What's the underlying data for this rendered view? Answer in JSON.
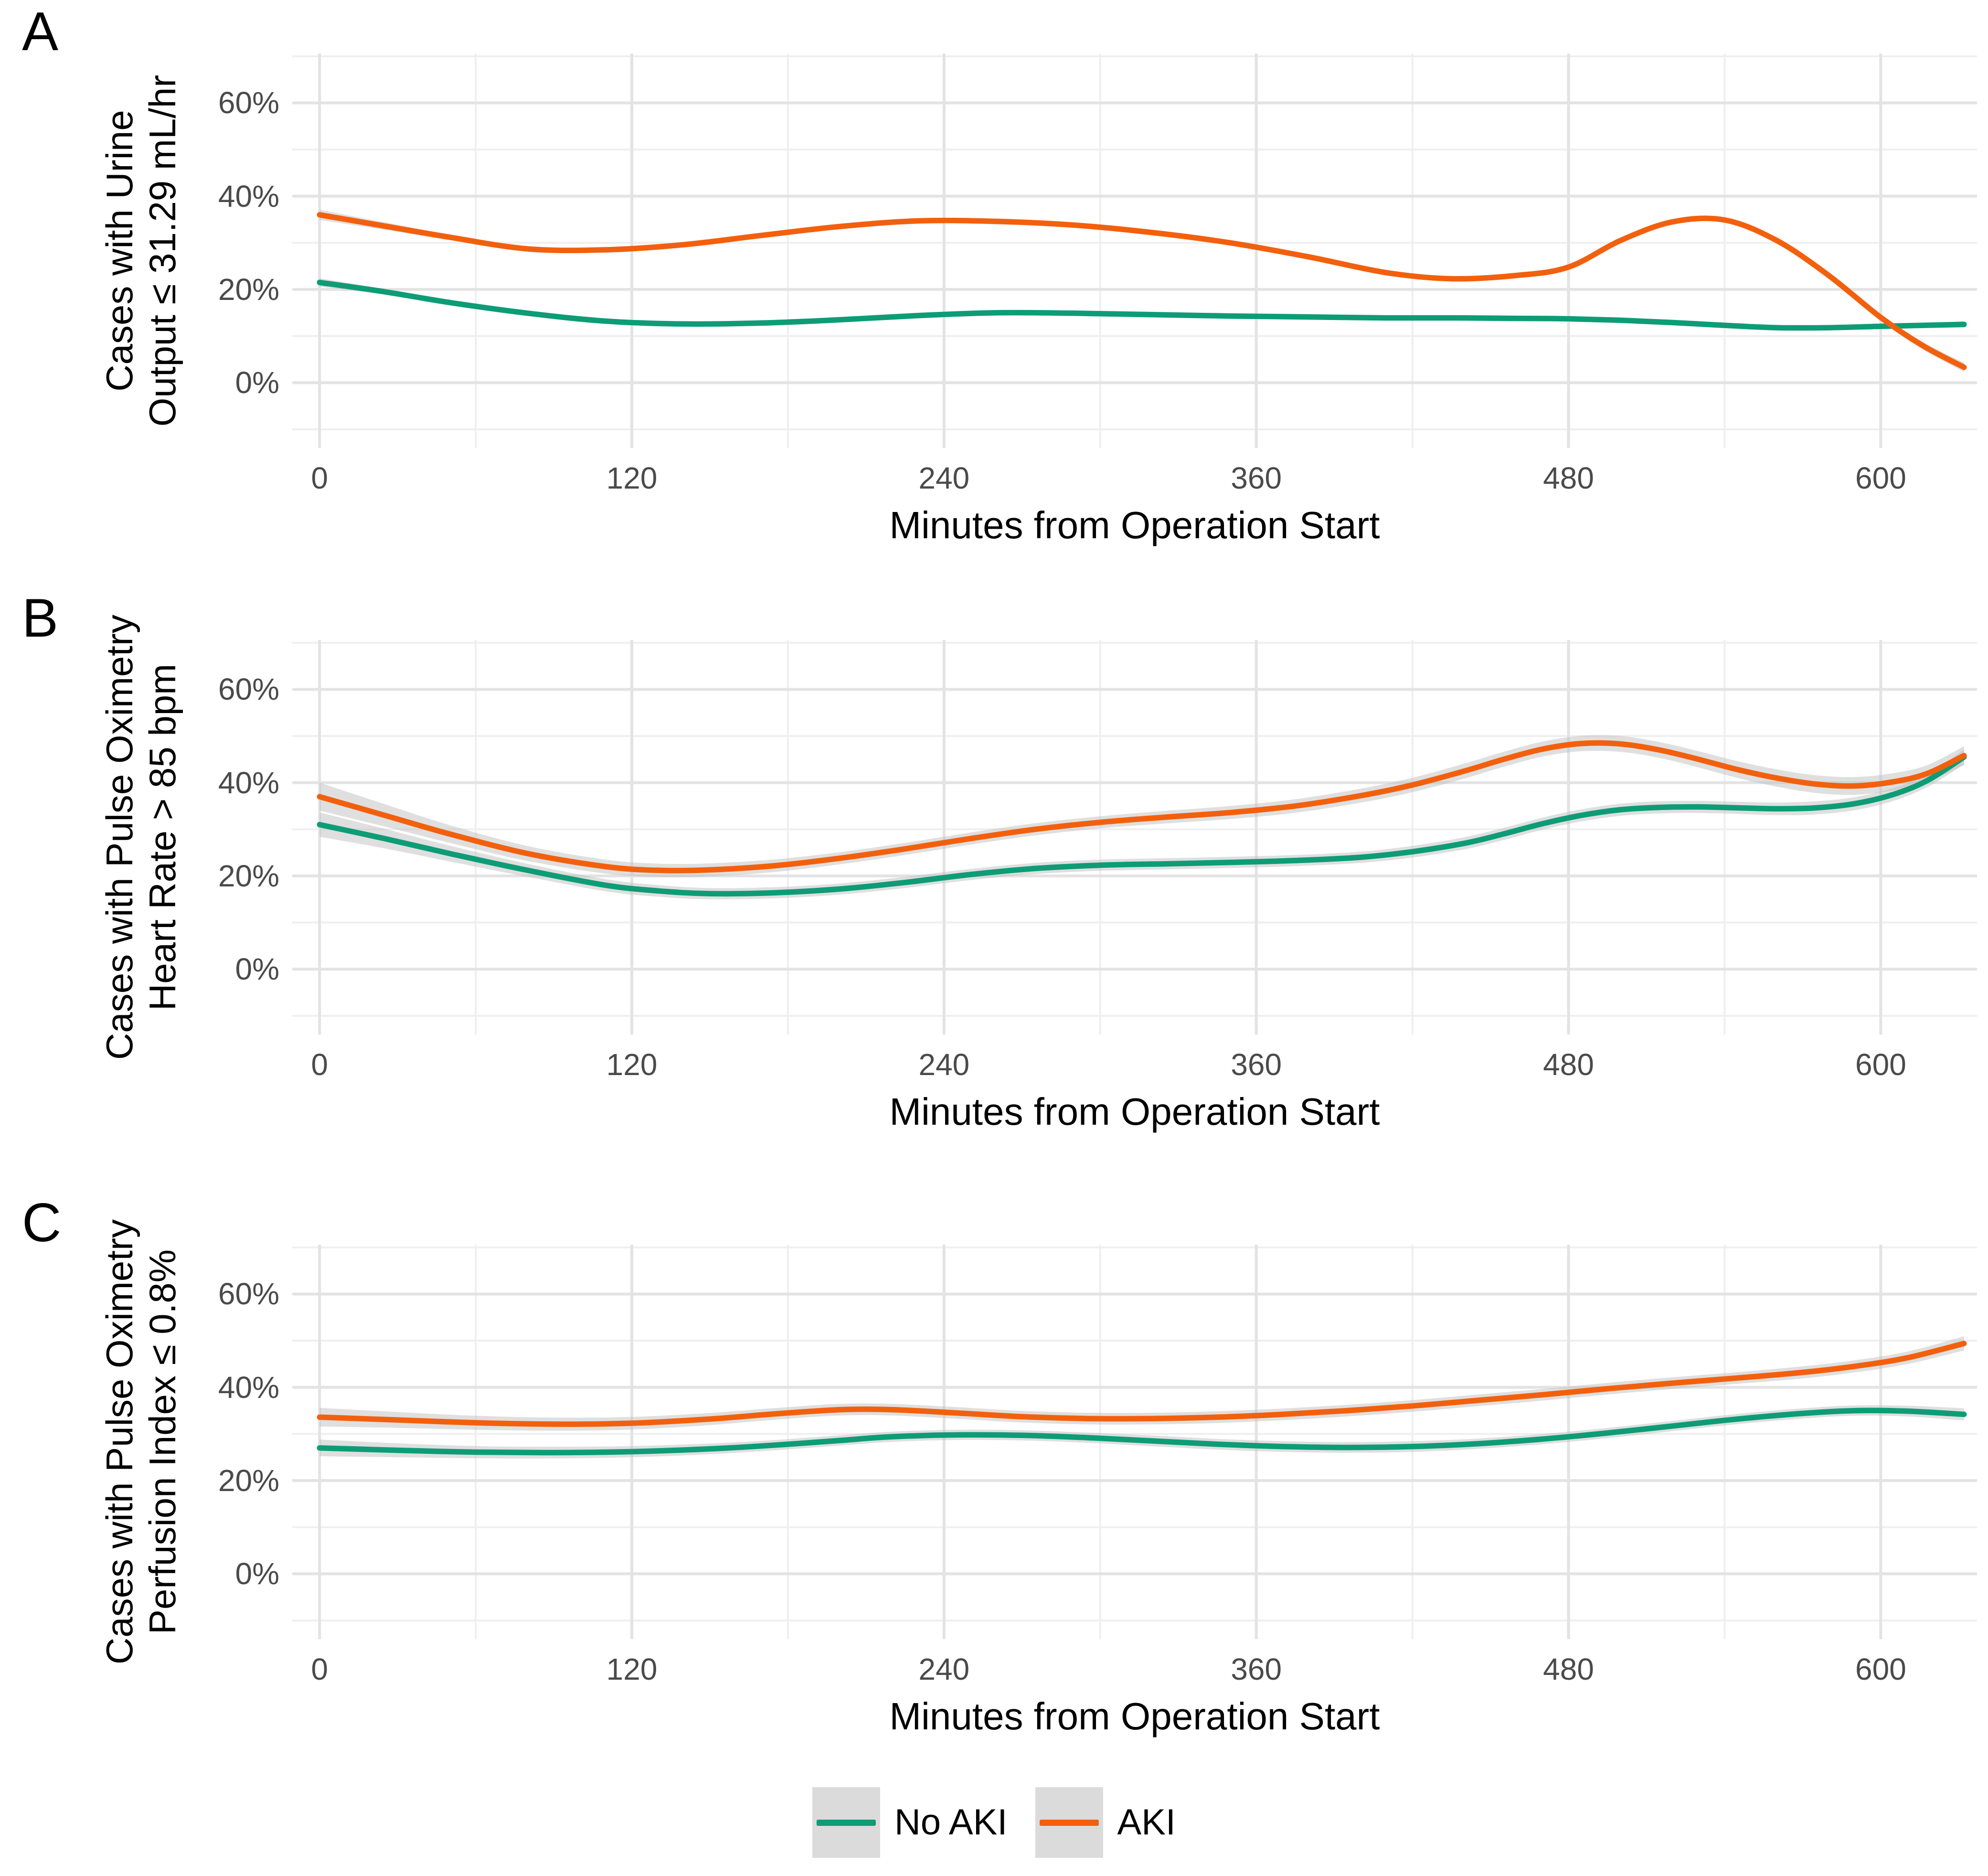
{
  "axis": {
    "x_title": "Minutes from Operation Start",
    "x_tick_labels": [
      "0",
      "120",
      "240",
      "360",
      "480",
      "600"
    ],
    "x_tick_values": [
      0,
      120,
      240,
      360,
      480,
      600
    ],
    "x_minor_values": [
      60,
      180,
      300,
      420,
      540
    ],
    "y_tick_labels": [
      "0%",
      "20%",
      "40%",
      "60%"
    ],
    "y_tick_values": [
      0,
      20,
      40,
      60
    ],
    "y_minor_values": [
      -10,
      10,
      30,
      50,
      70
    ]
  },
  "colors": {
    "no_aki": "#0d9c76",
    "aki": "#f2600d",
    "ribbon": "#bfbfbf",
    "grid_major": "#e3e3e3",
    "grid_minor": "#efefef",
    "tick_text": "#4a4a4a"
  },
  "legend": {
    "items": [
      {
        "label": "No AKI",
        "series": "no_aki"
      },
      {
        "label": "AKI",
        "series": "aki"
      }
    ]
  },
  "chart_data": [
    {
      "panel": "A",
      "type": "line",
      "ylabel_lines": [
        "Cases with Urine",
        "Output ≤ 31.29 mL/hr"
      ],
      "xlabel": "Minutes from Operation Start",
      "x_range": [
        0,
        632
      ],
      "y_range_shown": [
        0,
        60
      ],
      "grid": true,
      "series": [
        {
          "name": "No AKI",
          "color_key": "no_aki",
          "x": [
            0,
            25,
            50,
            80,
            110,
            140,
            170,
            200,
            230,
            260,
            290,
            320,
            350,
            380,
            410,
            435,
            460,
            480,
            500,
            520,
            540,
            560,
            580,
            600,
            616,
            632
          ],
          "y": [
            21.5,
            19.5,
            17.2,
            14.9,
            13.2,
            12.6,
            12.8,
            13.5,
            14.4,
            15.0,
            14.9,
            14.6,
            14.3,
            14.1,
            13.9,
            13.9,
            13.8,
            13.7,
            13.4,
            12.9,
            12.3,
            11.8,
            11.8,
            12.1,
            12.3,
            12.5
          ],
          "ci": [
            0.9,
            0.6,
            0.5,
            0.4,
            0.35,
            0.3,
            0.3,
            0.3,
            0.3,
            0.3,
            0.3,
            0.3,
            0.3,
            0.3,
            0.3,
            0.3,
            0.3,
            0.3,
            0.3,
            0.3,
            0.35,
            0.4,
            0.45,
            0.5,
            0.55,
            0.65
          ]
        },
        {
          "name": "AKI",
          "color_key": "aki",
          "x": [
            0,
            25,
            50,
            80,
            110,
            140,
            170,
            200,
            230,
            260,
            290,
            320,
            350,
            380,
            410,
            435,
            460,
            480,
            500,
            520,
            540,
            560,
            580,
            600,
            616,
            632
          ],
          "y": [
            36.0,
            33.6,
            31.2,
            28.7,
            28.5,
            29.6,
            31.6,
            33.5,
            34.7,
            34.6,
            33.8,
            32.2,
            30.0,
            27.0,
            23.6,
            22.3,
            23.0,
            24.8,
            30.5,
            34.5,
            34.9,
            30.5,
            23.0,
            14.0,
            8.0,
            3.3
          ],
          "ci": [
            1.1,
            0.8,
            0.6,
            0.5,
            0.45,
            0.4,
            0.4,
            0.4,
            0.4,
            0.4,
            0.4,
            0.4,
            0.4,
            0.4,
            0.45,
            0.45,
            0.45,
            0.45,
            0.5,
            0.5,
            0.5,
            0.55,
            0.6,
            0.7,
            0.8,
            1.0
          ]
        }
      ]
    },
    {
      "panel": "B",
      "type": "line",
      "ylabel_lines": [
        "Cases with Pulse Oximetry",
        "Heart Rate > 85 bpm"
      ],
      "xlabel": "Minutes from Operation Start",
      "x_range": [
        0,
        632
      ],
      "y_range_shown": [
        0,
        60
      ],
      "grid": true,
      "series": [
        {
          "name": "No AKI",
          "color_key": "no_aki",
          "x": [
            0,
            25,
            50,
            80,
            110,
            130,
            150,
            175,
            200,
            225,
            250,
            275,
            300,
            325,
            350,
            375,
            400,
            420,
            440,
            455,
            470,
            485,
            500,
            515,
            530,
            545,
            560,
            575,
            590,
            605,
            618,
            632
          ],
          "y": [
            31.0,
            28.0,
            24.8,
            21.2,
            18.0,
            16.8,
            16.2,
            16.4,
            17.2,
            18.6,
            20.3,
            21.6,
            22.3,
            22.6,
            22.9,
            23.3,
            24.0,
            25.2,
            27.0,
            29.0,
            31.2,
            33.0,
            34.2,
            34.7,
            34.8,
            34.6,
            34.4,
            34.6,
            35.5,
            37.5,
            40.5,
            45.5
          ],
          "ci": [
            2.6,
            2.1,
            1.7,
            1.4,
            1.3,
            1.25,
            1.2,
            1.2,
            1.2,
            1.2,
            1.2,
            1.2,
            1.2,
            1.2,
            1.2,
            1.2,
            1.2,
            1.25,
            1.3,
            1.3,
            1.3,
            1.3,
            1.3,
            1.3,
            1.3,
            1.3,
            1.35,
            1.4,
            1.4,
            1.4,
            1.4,
            1.6
          ]
        },
        {
          "name": "AKI",
          "color_key": "aki",
          "x": [
            0,
            25,
            50,
            80,
            110,
            130,
            150,
            175,
            200,
            225,
            250,
            275,
            300,
            325,
            350,
            375,
            400,
            420,
            440,
            455,
            470,
            485,
            500,
            515,
            530,
            545,
            560,
            575,
            590,
            605,
            618,
            632
          ],
          "y": [
            37.0,
            33.0,
            29.0,
            24.8,
            22.0,
            21.2,
            21.3,
            22.2,
            23.8,
            25.8,
            28.0,
            30.0,
            31.5,
            32.6,
            33.6,
            35.0,
            37.2,
            39.5,
            42.5,
            45.0,
            47.2,
            48.4,
            48.3,
            47.0,
            45.0,
            42.8,
            41.0,
            39.7,
            39.3,
            40.2,
            42.0,
            45.8
          ],
          "ci": [
            3.0,
            2.4,
            1.9,
            1.6,
            1.5,
            1.45,
            1.4,
            1.35,
            1.3,
            1.3,
            1.3,
            1.3,
            1.3,
            1.35,
            1.4,
            1.45,
            1.5,
            1.55,
            1.6,
            1.6,
            1.6,
            1.65,
            1.7,
            1.7,
            1.75,
            1.8,
            1.85,
            1.9,
            1.9,
            1.85,
            1.8,
            2.0
          ]
        }
      ]
    },
    {
      "panel": "C",
      "type": "line",
      "ylabel_lines": [
        "Cases with Pulse Oximetry",
        "Perfusion Index ≤ 0.8%"
      ],
      "xlabel": "Minutes from Operation Start",
      "x_range": [
        0,
        632
      ],
      "y_range_shown": [
        0,
        60
      ],
      "grid": true,
      "series": [
        {
          "name": "No AKI",
          "color_key": "no_aki",
          "x": [
            0,
            30,
            60,
            90,
            120,
            150,
            175,
            200,
            220,
            245,
            270,
            295,
            320,
            345,
            370,
            395,
            420,
            445,
            470,
            495,
            520,
            545,
            570,
            590,
            610,
            632
          ],
          "y": [
            27.0,
            26.5,
            26.1,
            26.0,
            26.2,
            26.8,
            27.6,
            28.6,
            29.4,
            29.8,
            29.7,
            29.2,
            28.5,
            27.8,
            27.3,
            27.1,
            27.3,
            27.9,
            28.9,
            30.2,
            31.7,
            33.2,
            34.4,
            35.0,
            34.9,
            34.2
          ],
          "ci": [
            1.8,
            1.5,
            1.3,
            1.25,
            1.2,
            1.15,
            1.1,
            1.1,
            1.1,
            1.1,
            1.1,
            1.1,
            1.15,
            1.15,
            1.15,
            1.15,
            1.15,
            1.1,
            1.1,
            1.1,
            1.1,
            1.1,
            1.1,
            1.1,
            1.15,
            1.3
          ]
        },
        {
          "name": "AKI",
          "color_key": "aki",
          "x": [
            0,
            30,
            60,
            90,
            120,
            150,
            175,
            200,
            220,
            245,
            270,
            295,
            320,
            345,
            370,
            395,
            420,
            445,
            470,
            495,
            520,
            545,
            570,
            590,
            610,
            632
          ],
          "y": [
            33.6,
            33.0,
            32.4,
            32.1,
            32.3,
            33.2,
            34.3,
            35.2,
            35.2,
            34.5,
            33.7,
            33.3,
            33.3,
            33.6,
            34.2,
            35.0,
            36.0,
            37.2,
            38.4,
            39.7,
            40.9,
            42.0,
            43.2,
            44.5,
            46.3,
            49.4
          ],
          "ci": [
            2.0,
            1.7,
            1.5,
            1.4,
            1.35,
            1.3,
            1.25,
            1.25,
            1.25,
            1.25,
            1.25,
            1.25,
            1.25,
            1.25,
            1.25,
            1.25,
            1.25,
            1.25,
            1.25,
            1.25,
            1.25,
            1.25,
            1.3,
            1.3,
            1.35,
            1.5
          ]
        }
      ]
    }
  ]
}
